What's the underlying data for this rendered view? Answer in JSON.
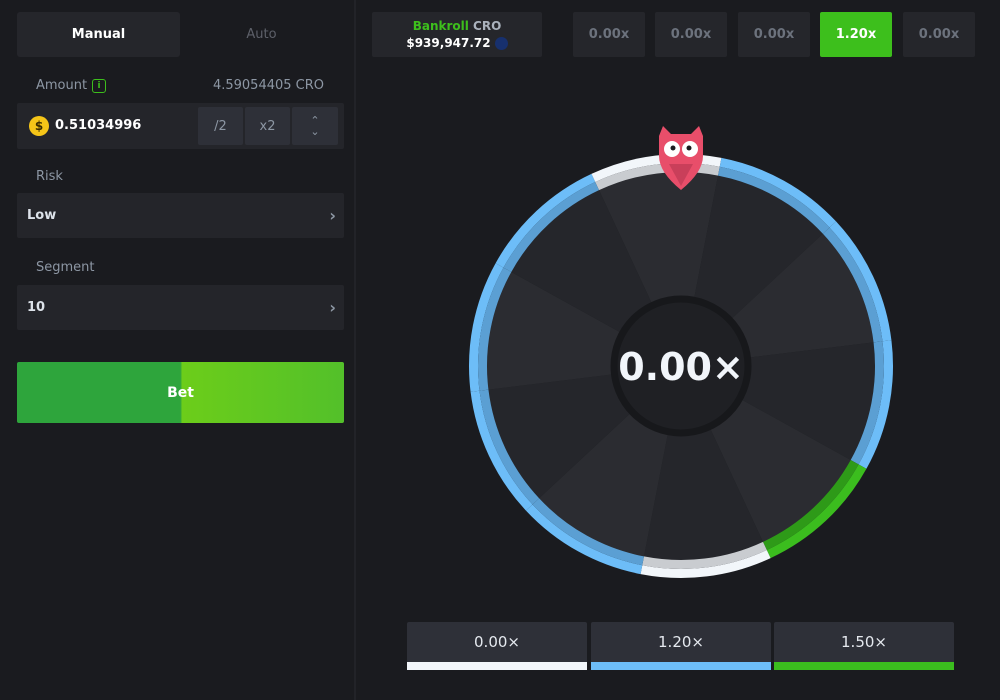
{
  "tabs": {
    "manual": "Manual",
    "auto": "Auto"
  },
  "amount": {
    "label": "Amount",
    "balance": "4.59054405 CRO",
    "value": "0.51034996",
    "half": "/2",
    "double": "x2"
  },
  "risk": {
    "label": "Risk",
    "value": "Low"
  },
  "segment": {
    "label": "Segment",
    "value": "10"
  },
  "bet_label": "Bet",
  "bankroll": {
    "label": "Bankroll",
    "currency": "CRO",
    "value": "$939,947.72"
  },
  "history": [
    {
      "value": "0.00x",
      "active": false
    },
    {
      "value": "0.00x",
      "active": false
    },
    {
      "value": "0.00x",
      "active": false
    },
    {
      "value": "1.20x",
      "active": true
    },
    {
      "value": "0.00x",
      "active": false
    }
  ],
  "wheel": {
    "result": "0.00×",
    "segments": [
      "white",
      "blue",
      "blue",
      "blue",
      "green",
      "white",
      "blue",
      "blue",
      "blue",
      "blue"
    ],
    "colors": {
      "white": "#f2f6fa",
      "blue": "#6dbdf8",
      "green": "#3bbd1e"
    }
  },
  "legend": [
    {
      "label": "0.00×",
      "color": "#f2f6fa"
    },
    {
      "label": "1.20×",
      "color": "#6dbdf8"
    },
    {
      "label": "1.50×",
      "color": "#3bbd1e"
    }
  ]
}
